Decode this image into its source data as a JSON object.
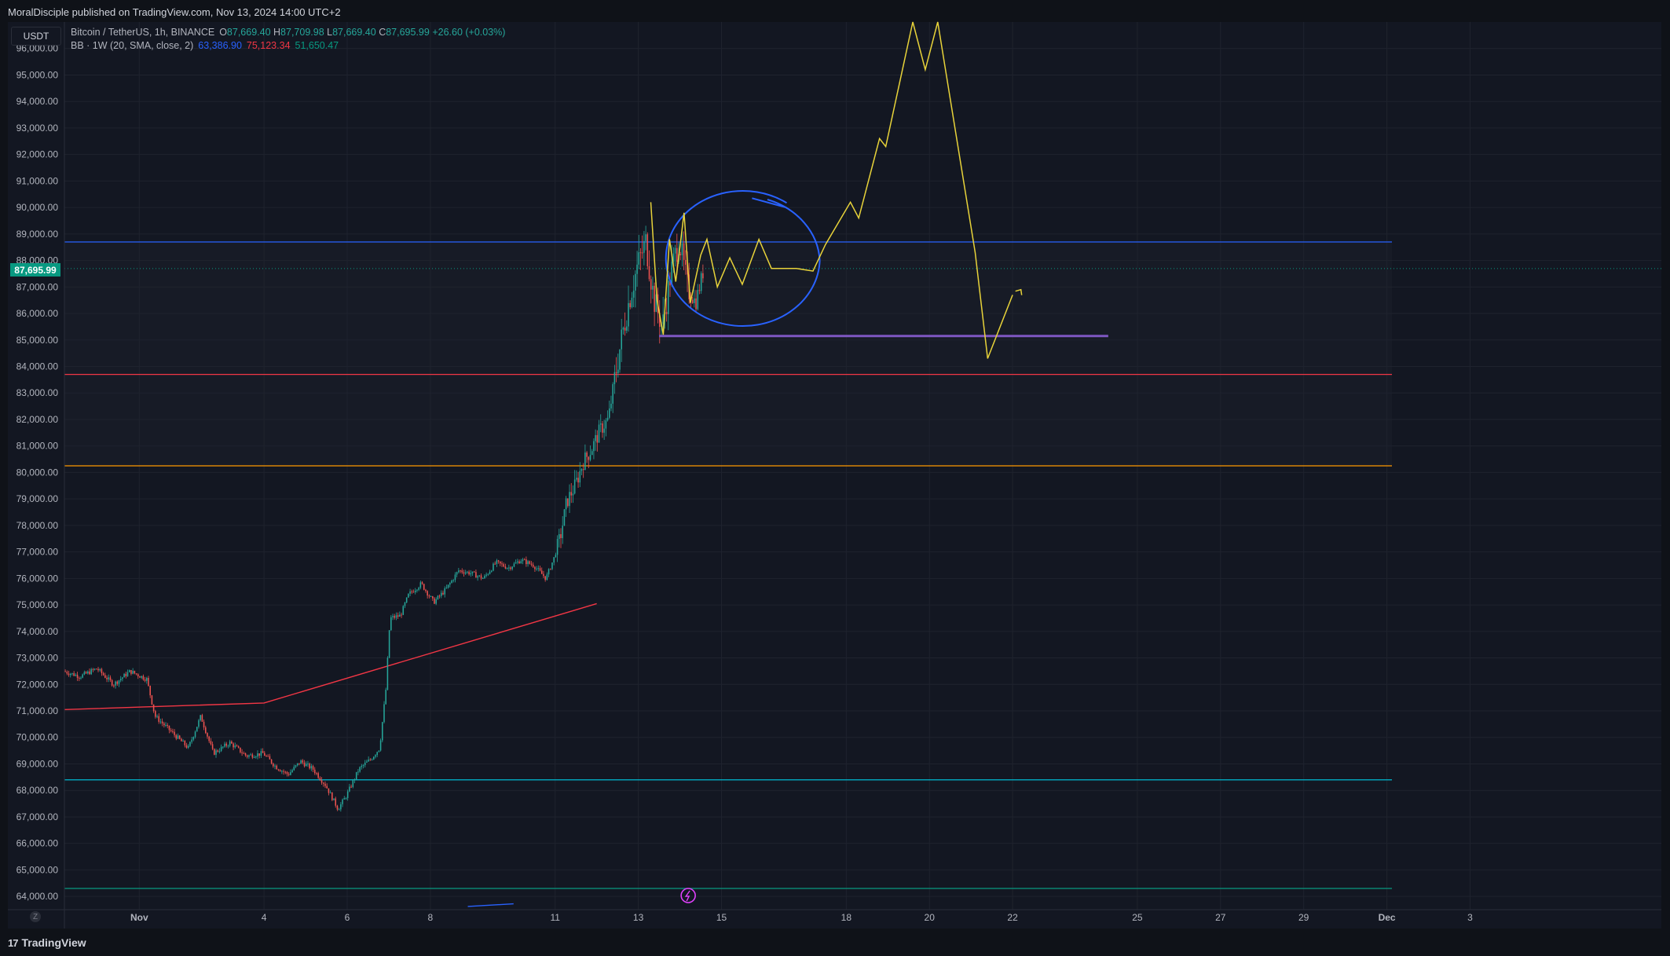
{
  "header": {
    "attribution": "MoralDisciple published on TradingView.com, Nov 13, 2024 14:00 UTC+2"
  },
  "legend": {
    "symbol": "Bitcoin / TetherUS, 1h, BINANCE",
    "open_label": "O",
    "open": "87,669.40",
    "high_label": "H",
    "high": "87,709.98",
    "low_label": "L",
    "low": "87,669.40",
    "close_label": "C",
    "close": "87,695.99",
    "change": "+26.60 (+0.03%)",
    "indicator": "BB · 1W (20, SMA, close, 2)",
    "bb_basis": "63,386.90",
    "bb_upper": "75,123.34",
    "bb_lower": "51,650.47"
  },
  "currency_button": "USDT",
  "last_price_tag": "87,695.99",
  "footer": {
    "brand": "TradingView",
    "brand_mark": "17"
  },
  "zoom_button": "Z",
  "colors": {
    "background": "#131722",
    "grid": "#1f232e",
    "up": "#26a69a",
    "down": "#ef5350",
    "projection": "#e8d33a",
    "blue_level": "#2962ff",
    "red_level": "#f23645",
    "orange_level": "#ff9800",
    "cyan_level": "#00bcd4",
    "teal_level": "#089981",
    "support": "#7e57c2",
    "circle": "#2962ff",
    "trendline": "#f23645"
  },
  "chart_data": {
    "type": "candlestick",
    "symbol": "BTCUSDT",
    "interval": "1h",
    "ylim": [
      63500,
      97000
    ],
    "xlim_days": [
      -1.8,
      36.6
    ],
    "y_ticks": [
      "96,000.00",
      "95,000.00",
      "94,000.00",
      "93,000.00",
      "92,000.00",
      "91,000.00",
      "90,000.00",
      "89,000.00",
      "88,000.00",
      "87,000.00",
      "86,000.00",
      "85,000.00",
      "84,000.00",
      "83,000.00",
      "82,000.00",
      "81,000.00",
      "80,000.00",
      "79,000.00",
      "78,000.00",
      "77,000.00",
      "76,000.00",
      "75,000.00",
      "74,000.00",
      "73,000.00",
      "72,000.00",
      "71,000.00",
      "70,000.00",
      "69,000.00",
      "68,000.00",
      "67,000.00",
      "66,000.00",
      "65,000.00",
      "64,000.00"
    ],
    "x_ticks": [
      {
        "day": 0,
        "label": "Nov"
      },
      {
        "day": 3,
        "label": "4"
      },
      {
        "day": 5,
        "label": "6"
      },
      {
        "day": 7,
        "label": "8"
      },
      {
        "day": 10,
        "label": "11"
      },
      {
        "day": 12,
        "label": "13"
      },
      {
        "day": 14,
        "label": "15"
      },
      {
        "day": 17,
        "label": "18"
      },
      {
        "day": 19,
        "label": "20"
      },
      {
        "day": 21,
        "label": "22"
      },
      {
        "day": 24,
        "label": "25"
      },
      {
        "day": 26,
        "label": "27"
      },
      {
        "day": 28,
        "label": "29"
      },
      {
        "day": 30,
        "label": "Dec"
      },
      {
        "day": 32,
        "label": "3"
      }
    ],
    "last_price": 87695.99,
    "price_path": [
      [
        -1.8,
        72500
      ],
      [
        -1.4,
        72300
      ],
      [
        -1.0,
        72600
      ],
      [
        -0.6,
        72000
      ],
      [
        -0.2,
        72500
      ],
      [
        0.2,
        72200
      ],
      [
        0.4,
        70800
      ],
      [
        0.8,
        70200
      ],
      [
        1.2,
        69600
      ],
      [
        1.5,
        70800
      ],
      [
        1.8,
        69400
      ],
      [
        2.2,
        69800
      ],
      [
        2.6,
        69300
      ],
      [
        3.0,
        69400
      ],
      [
        3.3,
        68900
      ],
      [
        3.6,
        68600
      ],
      [
        3.9,
        69100
      ],
      [
        4.2,
        68800
      ],
      [
        4.5,
        68200
      ],
      [
        4.8,
        67300
      ],
      [
        5.0,
        67800
      ],
      [
        5.3,
        68800
      ],
      [
        5.6,
        69200
      ],
      [
        5.8,
        69600
      ],
      [
        5.95,
        71800
      ],
      [
        6.05,
        74500
      ],
      [
        6.3,
        74600
      ],
      [
        6.5,
        75400
      ],
      [
        6.8,
        75800
      ],
      [
        7.1,
        75100
      ],
      [
        7.4,
        75600
      ],
      [
        7.7,
        76300
      ],
      [
        8.0,
        76200
      ],
      [
        8.3,
        76000
      ],
      [
        8.6,
        76600
      ],
      [
        8.9,
        76400
      ],
      [
        9.2,
        76700
      ],
      [
        9.5,
        76500
      ],
      [
        9.8,
        76000
      ],
      [
        10.0,
        76800
      ],
      [
        10.15,
        77600
      ],
      [
        10.3,
        78900
      ],
      [
        10.5,
        79500
      ],
      [
        10.7,
        80400
      ],
      [
        10.9,
        80900
      ],
      [
        11.1,
        81600
      ],
      [
        11.3,
        82000
      ],
      [
        11.45,
        83500
      ],
      [
        11.6,
        84900
      ],
      [
        11.8,
        86500
      ],
      [
        12.0,
        87800
      ],
      [
        12.2,
        88700
      ],
      [
        12.4,
        86500
      ],
      [
        12.6,
        85500
      ],
      [
        12.8,
        87500
      ],
      [
        13.0,
        88800
      ],
      [
        13.2,
        87000
      ],
      [
        13.4,
        86400
      ],
      [
        13.6,
        87700
      ]
    ],
    "horizontal_levels": [
      {
        "price": 88700,
        "color_key": "blue_level"
      },
      {
        "price": 83700,
        "color_key": "red_level"
      },
      {
        "price": 80250,
        "color_key": "orange_level"
      },
      {
        "price": 68400,
        "color_key": "cyan_level"
      },
      {
        "price": 64300,
        "color_key": "teal_level"
      }
    ],
    "support_line": {
      "from_day": 12.5,
      "to_day": 23.3,
      "price": 85150
    },
    "trendline": [
      [
        -1.8,
        71050
      ],
      [
        3.0,
        71300
      ],
      [
        11.0,
        75050
      ]
    ],
    "projection_path": [
      [
        12.3,
        90200
      ],
      [
        12.45,
        86500
      ],
      [
        12.6,
        85200
      ],
      [
        12.75,
        88800
      ],
      [
        12.9,
        87200
      ],
      [
        13.1,
        89800
      ],
      [
        13.25,
        86400
      ],
      [
        13.5,
        88200
      ],
      [
        13.65,
        88800
      ],
      [
        13.9,
        87000
      ],
      [
        14.2,
        88100
      ],
      [
        14.5,
        87100
      ],
      [
        14.9,
        88800
      ],
      [
        15.2,
        87700
      ],
      [
        15.8,
        87700
      ],
      [
        16.2,
        87600
      ],
      [
        16.5,
        88600
      ],
      [
        17.1,
        90200
      ],
      [
        17.3,
        89600
      ],
      [
        17.8,
        92600
      ],
      [
        17.95,
        92300
      ],
      [
        18.6,
        97000
      ],
      [
        18.9,
        95200
      ],
      [
        19.2,
        97000
      ],
      [
        20.1,
        88300
      ],
      [
        20.4,
        84300
      ],
      [
        21.0,
        86700
      ]
    ],
    "projection_arrow": {
      "from": [
        20.95,
        86600
      ],
      "to": [
        21.2,
        86900
      ]
    },
    "circle": {
      "center_day": 14.55,
      "center_price": 87750,
      "rx_days": 1.85,
      "ry_price": 2550
    }
  }
}
